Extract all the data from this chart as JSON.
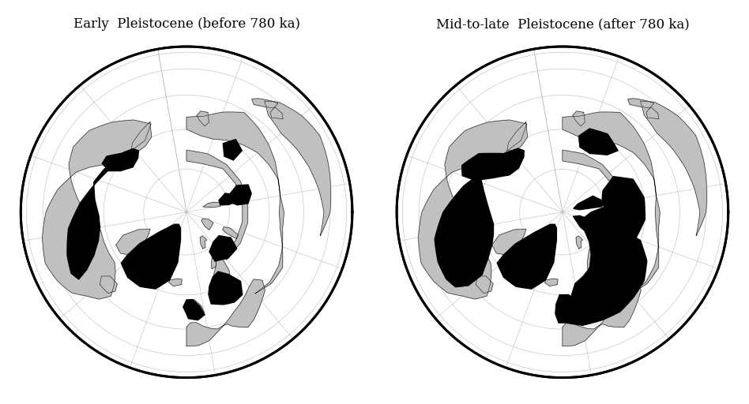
{
  "title_left": "Early  Pleistocene (before 780 ka)",
  "title_right": "Mid-to-late  Pleistocene (after 780 ka)",
  "title_fontsize": 12,
  "background_color": "#ffffff",
  "land_color": "#c0c0c0",
  "ocean_color": "#ffffff",
  "ice_color": "#000000",
  "border_color": "#000000",
  "grid_color": "#aaaaaa",
  "central_lon": -10,
  "central_lat": 90
}
